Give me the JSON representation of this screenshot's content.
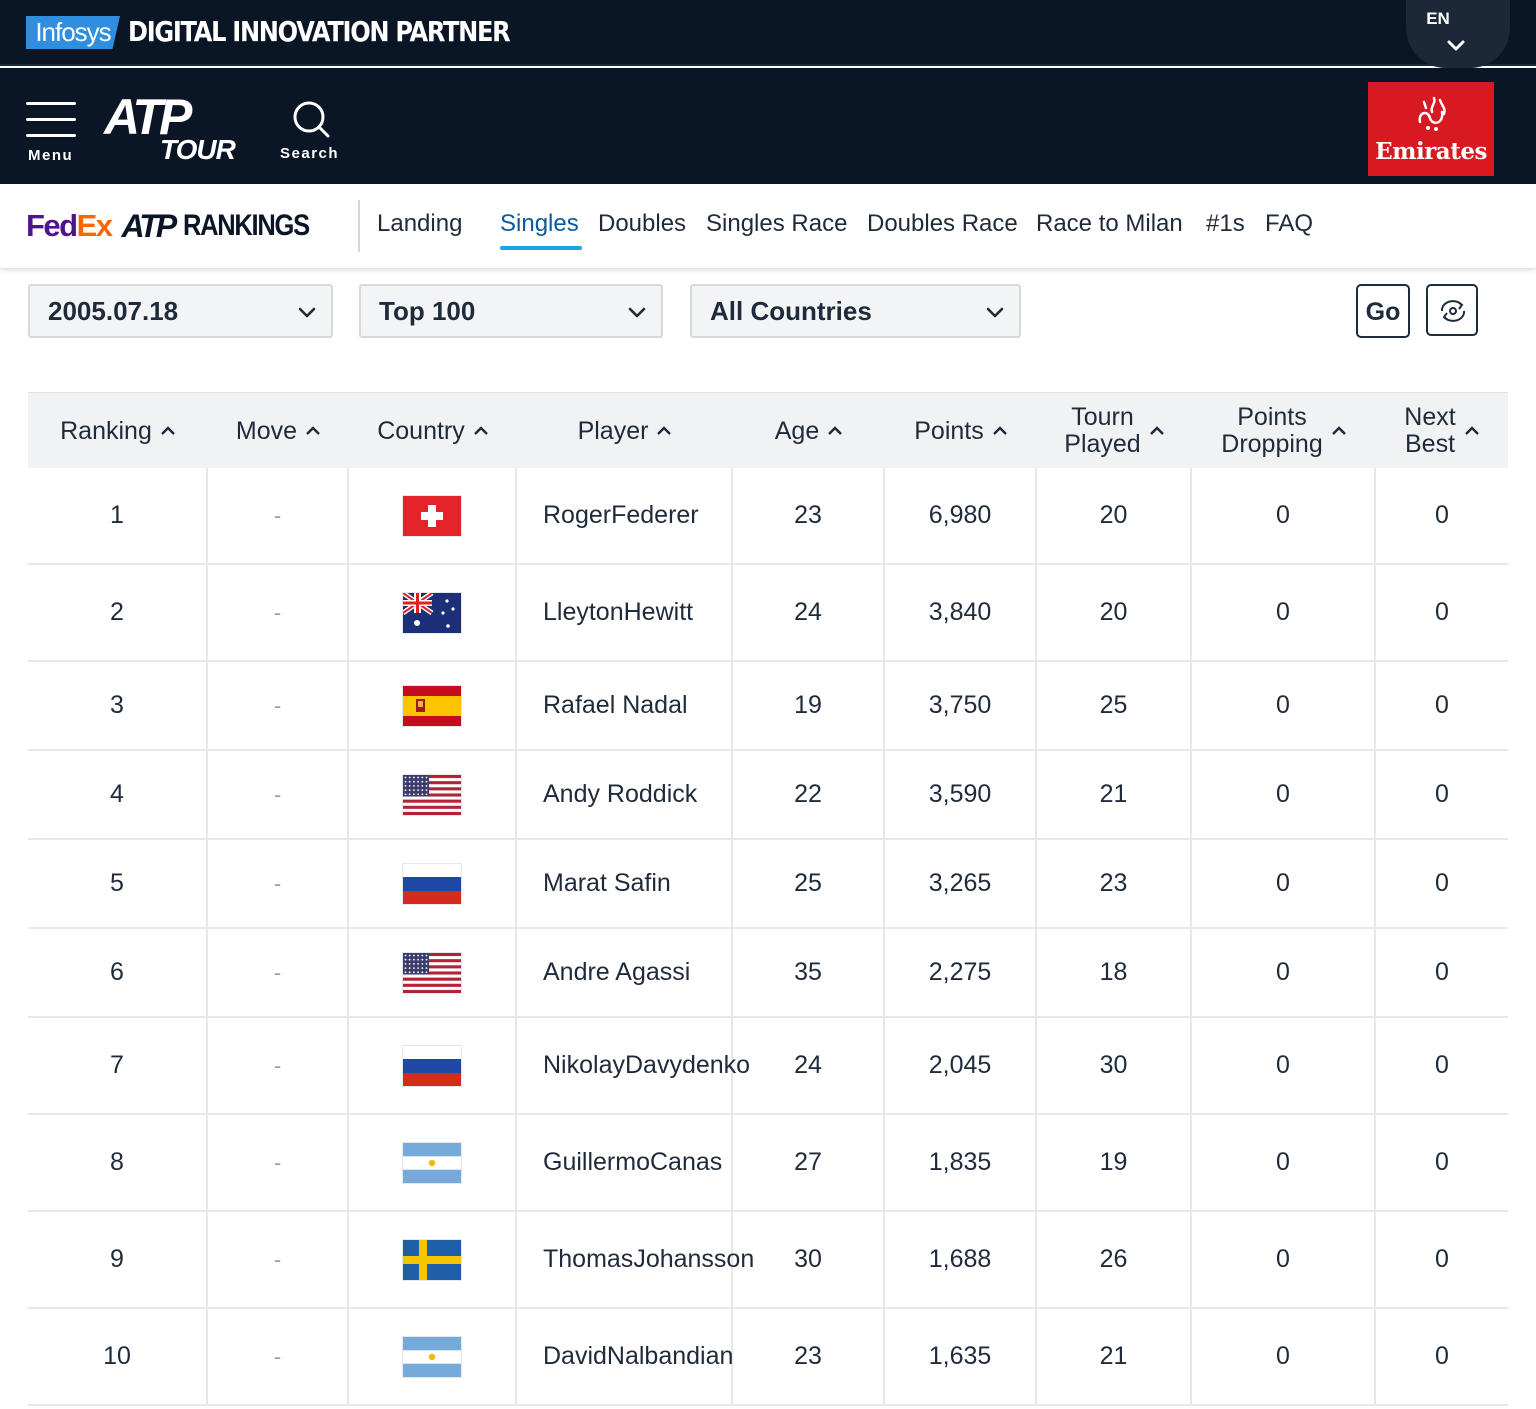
{
  "partner_bar": {
    "infosys_logo": "Infosys",
    "partner_text": "DIGITAL INNOVATION PARTNER",
    "language": "EN"
  },
  "main_nav": {
    "menu_label": "Menu",
    "logo_atp": "ATP",
    "logo_tour": "TOUR",
    "search_label": "Search",
    "sponsor": "Emirates"
  },
  "sub_nav": {
    "logo": {
      "fed": "Fed",
      "ex": "Ex",
      "atp": "ATP",
      "rankings": "RANKINGS"
    },
    "links": [
      "Landing",
      "Singles",
      "Doubles",
      "Singles Race",
      "Doubles Race",
      "Race to Milan",
      "#1s",
      "FAQ"
    ],
    "active": "Singles"
  },
  "filters": {
    "date": "2005.07.18",
    "range": "Top 100",
    "country": "All Countries",
    "go_label": "Go"
  },
  "table": {
    "headers": {
      "ranking": "Ranking",
      "move": "Move",
      "country": "Country",
      "player": "Player",
      "age": "Age",
      "points": "Points",
      "tourn_played_1": "Tourn",
      "tourn_played_2": "Played",
      "points_dropping_1": "Points",
      "points_dropping_2": "Dropping",
      "next_best_1": "Next",
      "next_best_2": "Best"
    },
    "rows": [
      {
        "rank": "1",
        "move": "-",
        "country": "SUI",
        "flag": "switzerland-flag-icon",
        "first": "Roger",
        "last": "Federer",
        "age": "23",
        "points": "6,980",
        "tourn": "20",
        "dropping": "0",
        "next_best": "0"
      },
      {
        "rank": "2",
        "move": "-",
        "country": "AUS",
        "flag": "australia-flag-icon",
        "first": "Lleyton",
        "last": "Hewitt",
        "age": "24",
        "points": "3,840",
        "tourn": "20",
        "dropping": "0",
        "next_best": "0"
      },
      {
        "rank": "3",
        "move": "-",
        "country": "ESP",
        "flag": "spain-flag-icon",
        "first": "Rafael Nadal",
        "last": "",
        "age": "19",
        "points": "3,750",
        "tourn": "25",
        "dropping": "0",
        "next_best": "0"
      },
      {
        "rank": "4",
        "move": "-",
        "country": "USA",
        "flag": "usa-flag-icon",
        "first": "Andy Roddick",
        "last": "",
        "age": "22",
        "points": "3,590",
        "tourn": "21",
        "dropping": "0",
        "next_best": "0"
      },
      {
        "rank": "5",
        "move": "-",
        "country": "RUS",
        "flag": "russia-flag-icon",
        "first": "Marat Safin",
        "last": "",
        "age": "25",
        "points": "3,265",
        "tourn": "23",
        "dropping": "0",
        "next_best": "0"
      },
      {
        "rank": "6",
        "move": "-",
        "country": "USA",
        "flag": "usa-flag-icon",
        "first": "Andre Agassi",
        "last": "",
        "age": "35",
        "points": "2,275",
        "tourn": "18",
        "dropping": "0",
        "next_best": "0"
      },
      {
        "rank": "7",
        "move": "-",
        "country": "RUS",
        "flag": "russia-flag-icon",
        "first": "Nikolay",
        "last": "Davydenko",
        "age": "24",
        "points": "2,045",
        "tourn": "30",
        "dropping": "0",
        "next_best": "0"
      },
      {
        "rank": "8",
        "move": "-",
        "country": "ARG",
        "flag": "argentina-flag-icon",
        "first": "Guillermo",
        "last": "Canas",
        "age": "27",
        "points": "1,835",
        "tourn": "19",
        "dropping": "0",
        "next_best": "0"
      },
      {
        "rank": "9",
        "move": "-",
        "country": "SWE",
        "flag": "sweden-flag-icon",
        "first": "Thomas",
        "last": "Johansson",
        "age": "30",
        "points": "1,688",
        "tourn": "26",
        "dropping": "0",
        "next_best": "0"
      },
      {
        "rank": "10",
        "move": "-",
        "country": "ARG",
        "flag": "argentina-flag-icon",
        "first": "David",
        "last": "Nalbandian",
        "age": "23",
        "points": "1,635",
        "tourn": "21",
        "dropping": "0",
        "next_best": "0"
      }
    ]
  },
  "colors": {
    "nav_bg": "#0a1526",
    "active_underline": "#1aa5e3",
    "fedex_purple": "#4d148c",
    "fedex_orange": "#ff6600",
    "emirates_red": "#d71921"
  }
}
